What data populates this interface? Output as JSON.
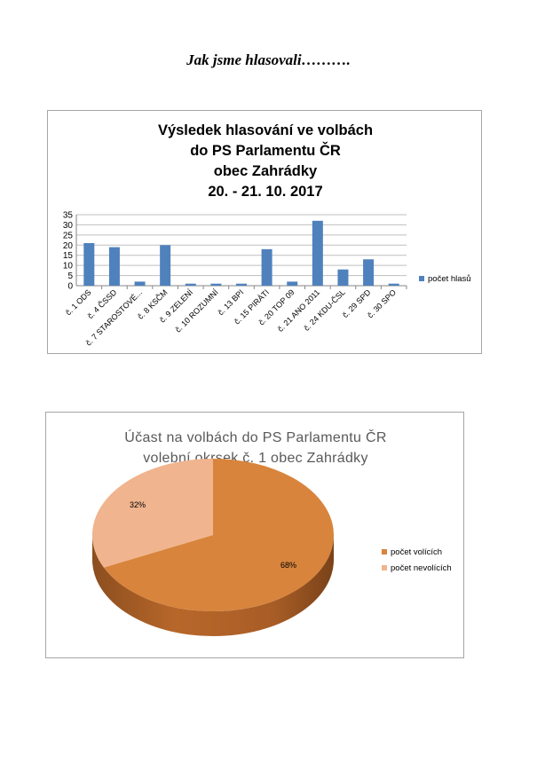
{
  "page": {
    "heading": "Jak jsme hlasovali………."
  },
  "chart_data": [
    {
      "type": "bar",
      "title_lines": [
        "Výsledek hlasování ve volbách",
        "do PS Parlamentu ČR",
        "obec Zahrádky",
        "20. - 21. 10. 2017"
      ],
      "categories": [
        "č. 1 ODS",
        "č. 4 ČSSD",
        "č. 7 STAROSTOVÉ...",
        "č. 8 KSČM",
        "č. 9 ZELENÍ",
        "č. 10 ROZUMNÍ",
        "č. 13 BPI",
        "č. 15 PIRÁTI",
        "č. 20 TOP 09",
        "č. 21 ANO 2011",
        "č. 24 KDU-ČSL",
        "č. 29 SPD",
        "č. 30 SPO"
      ],
      "series": [
        {
          "name": "počet hlasů",
          "values": [
            21,
            19,
            2,
            20,
            1,
            1,
            1,
            18,
            2,
            32,
            8,
            13,
            1
          ]
        }
      ],
      "ylim": [
        0,
        35
      ],
      "yticks": [
        "0",
        "5",
        "10",
        "15",
        "20",
        "25",
        "30",
        "35"
      ],
      "grid": true,
      "legend_position": "right",
      "colors": {
        "bar": "#4f81bd"
      }
    },
    {
      "type": "pie",
      "title_lines": [
        "Účast na volbách do PS Parlamentu ČR",
        "volební okrsek č. 1 obec Zahrádky"
      ],
      "slices": [
        {
          "name": "počet volících",
          "value": 68,
          "label": "68%",
          "color": "#d8843c"
        },
        {
          "name": "počet nevolících",
          "value": 32,
          "label": "32%",
          "color": "#f0b48e"
        }
      ],
      "legend_position": "right",
      "style": "3d"
    }
  ]
}
